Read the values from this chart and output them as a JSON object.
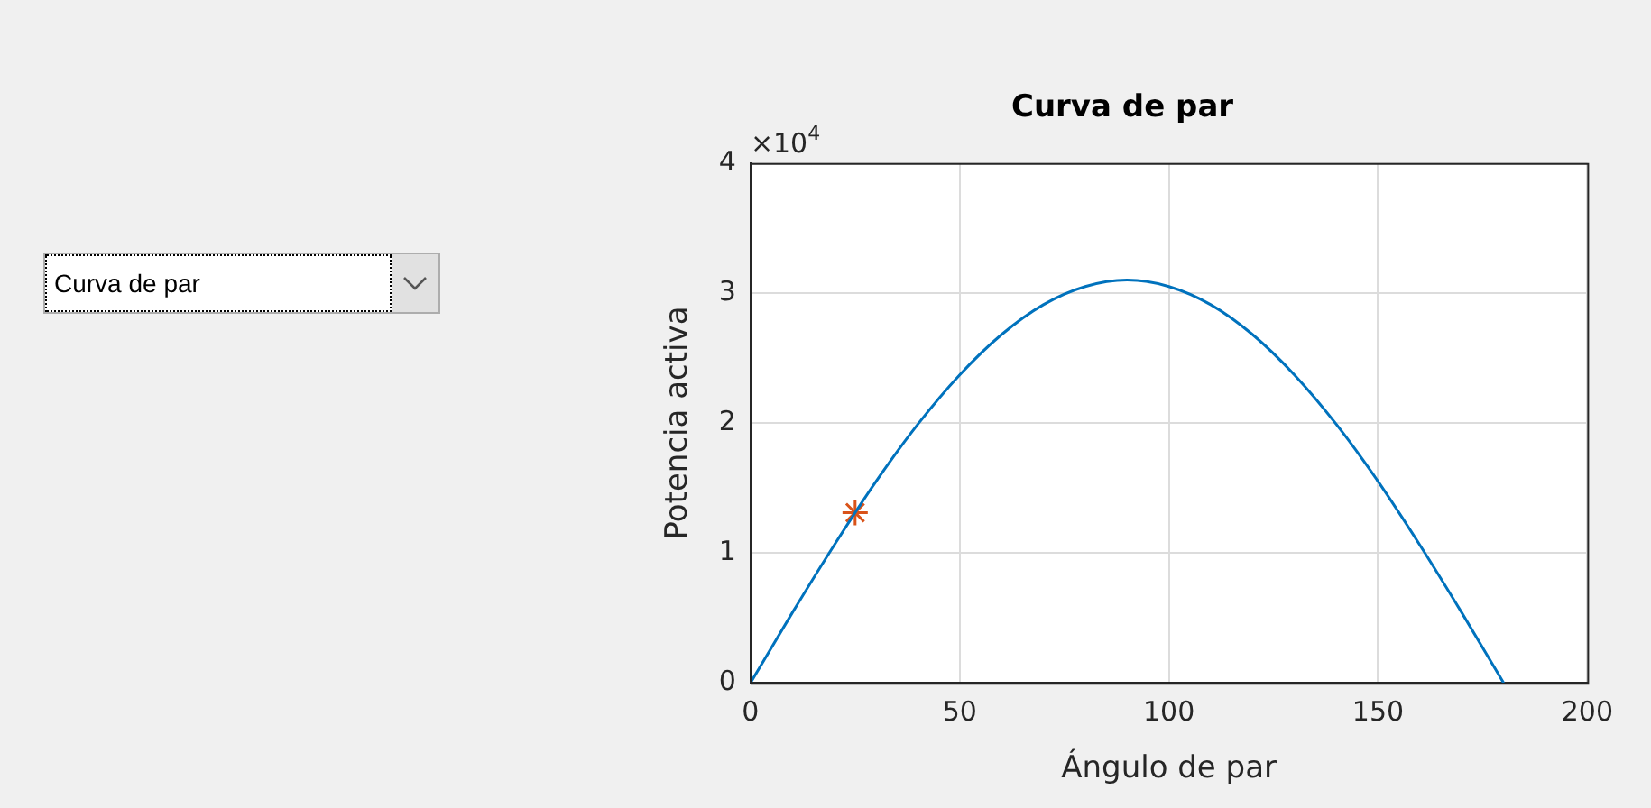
{
  "chart_data": {
    "type": "line",
    "title": "Curva de par",
    "xlabel": "Ángulo de par",
    "ylabel": "Potencia activa",
    "annotations": [
      "Curva de par",
      "×10$^{4}$"
    ],
    "xlim": [
      0,
      200
    ],
    "xticks": [
      0,
      50,
      100,
      150,
      200
    ],
    "ylim": [
      0,
      4
    ],
    "yticks": [
      0,
      1,
      2,
      3,
      4
    ],
    "grid": true,
    "legend": false,
    "series": [
      {
        "color": "#0072bd",
        "marker": "none",
        "line_style": "solid",
        "x": [
          0,
          10,
          20,
          30,
          40,
          50,
          60,
          70,
          80,
          90,
          100,
          110,
          120,
          130,
          140,
          150,
          160,
          170,
          180
        ],
        "values": [
          0,
          0.54,
          1.06,
          1.55,
          1.99,
          2.37,
          2.68,
          2.91,
          3.05,
          3.1,
          3.05,
          2.91,
          2.68,
          2.37,
          1.99,
          1.55,
          1.06,
          0.54,
          0
        ]
      },
      {
        "type": "scatter",
        "color": "#d95319",
        "marker": "cross",
        "x": [
          25
        ],
        "values": [
          1.31
        ]
      }
    ]
  }
}
